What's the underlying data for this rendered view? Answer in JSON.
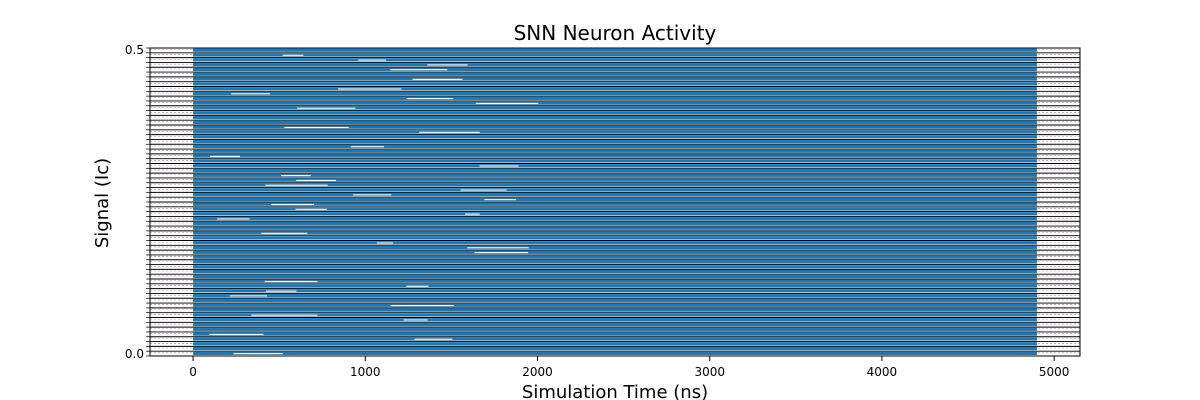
{
  "chart_data": {
    "type": "line",
    "title": "SNN Neuron Activity",
    "xlabel": "Simulation Time (ns)",
    "ylabel": "Signal (Ic)",
    "xlim": [
      -250,
      5150
    ],
    "data_x_range": [
      0,
      4900
    ],
    "xticks": [
      0,
      1000,
      2000,
      3000,
      4000,
      5000
    ],
    "xtick_labels": [
      "0",
      "1000",
      "2000",
      "3000",
      "4000",
      "5000"
    ],
    "ytick_labels": [
      "0.5",
      "0.0"
    ],
    "panel_count": 64,
    "series_color": "#1f77b4",
    "grid": "dashed magenta/gray horizontal lines in each panel",
    "grid_colors": [
      "#a0a0a0",
      "#cc33cc"
    ],
    "legend": "none",
    "note_sparse_early_activity": "white gaps in traces before ~1800 ns"
  }
}
